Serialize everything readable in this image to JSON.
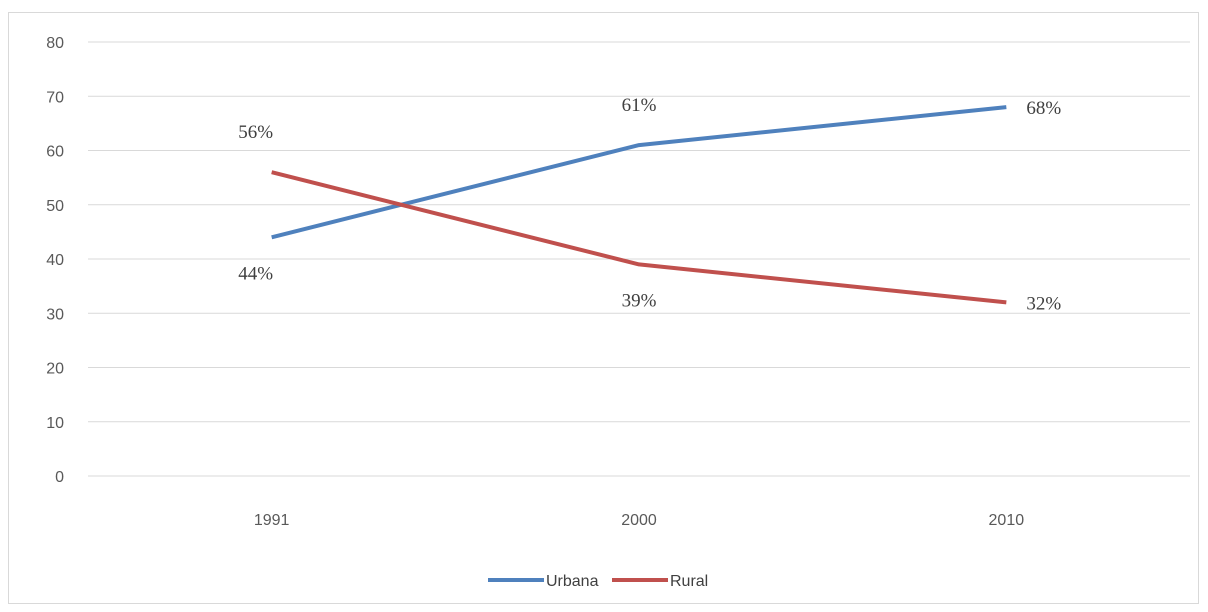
{
  "chart_data": {
    "type": "line",
    "categories": [
      "1991",
      "2000",
      "2010"
    ],
    "series": [
      {
        "name": "Urbana",
        "values": [
          44,
          61,
          68
        ],
        "labels": [
          "44%",
          "61%",
          "68%"
        ],
        "color": "#4f81bd"
      },
      {
        "name": "Rural",
        "values": [
          56,
          39,
          32
        ],
        "labels": [
          "56%",
          "39%",
          "32%"
        ],
        "color": "#c0504d"
      }
    ],
    "ylim": [
      0,
      80
    ],
    "yticks": [
      0,
      10,
      20,
      30,
      40,
      50,
      60,
      70,
      80
    ],
    "grid": true,
    "legend": "bottom",
    "title": "",
    "xlabel": "",
    "ylabel": ""
  },
  "colors": {
    "gridline": "#d9d9d9"
  }
}
